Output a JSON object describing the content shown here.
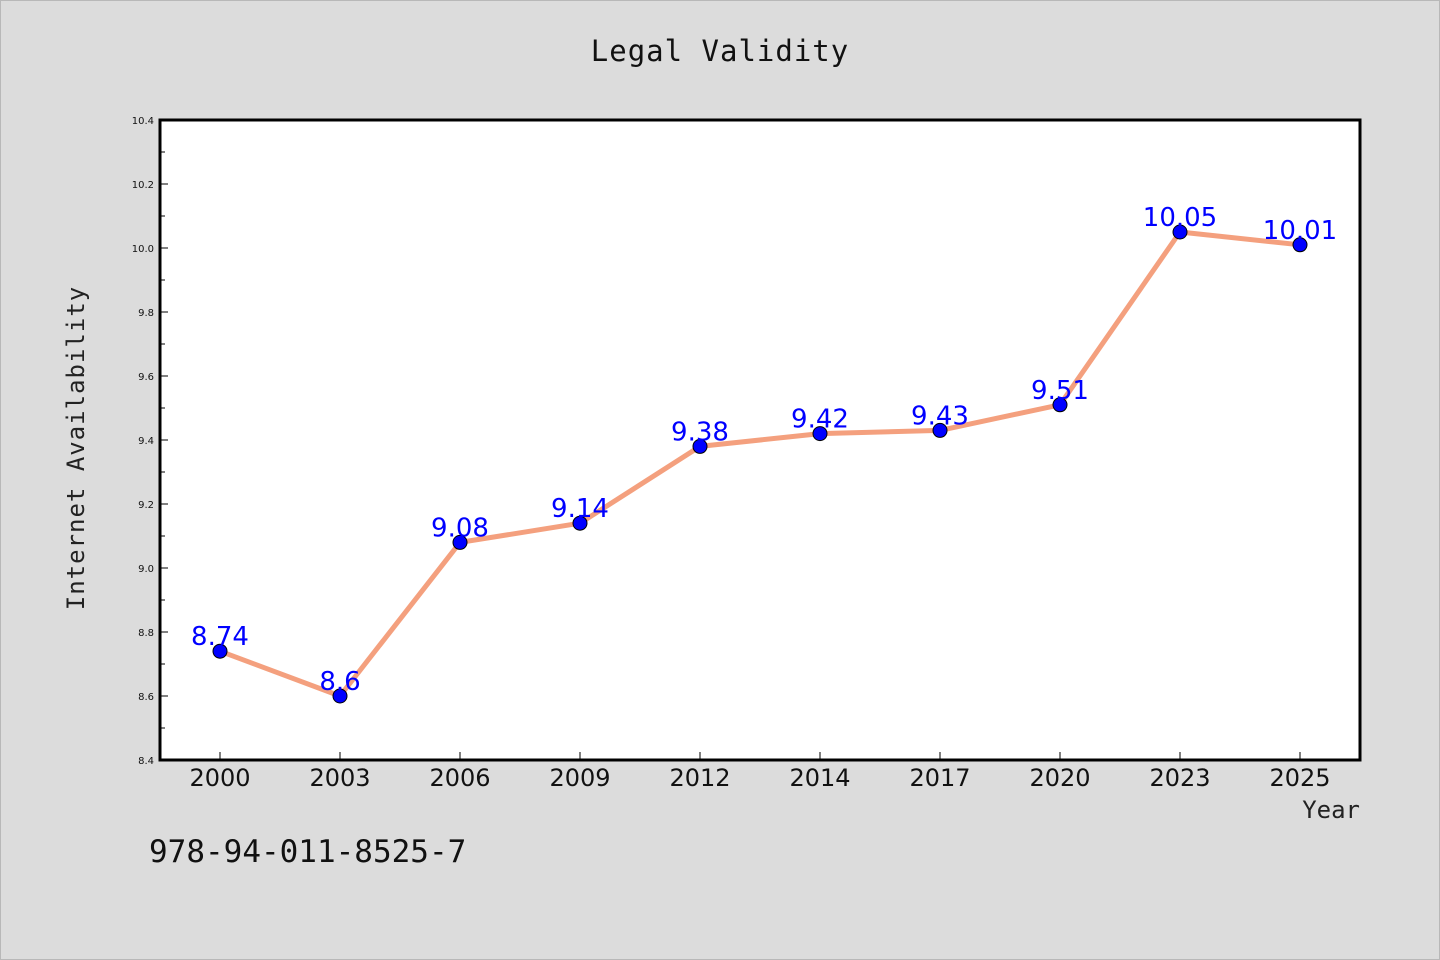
{
  "chart_data": {
    "type": "line",
    "title": "Legal Validity",
    "xlabel": "Year",
    "ylabel": "Internet Availability",
    "categories": [
      "2000",
      "2003",
      "2006",
      "2009",
      "2012",
      "2014",
      "2017",
      "2020",
      "2023",
      "2025"
    ],
    "values": [
      8.74,
      8.6,
      9.08,
      9.14,
      9.38,
      9.42,
      9.43,
      9.51,
      10.05,
      10.01
    ],
    "data_labels": [
      "8.74",
      "8.6",
      "9.08",
      "9.14",
      "9.38",
      "9.42",
      "9.43",
      "9.51",
      "10.05",
      "10.01"
    ],
    "ylim": [
      8.4,
      10.4
    ],
    "yticks": [
      8.4,
      8.6,
      8.8,
      9.0,
      9.2,
      9.4,
      9.6,
      9.8,
      10.0,
      10.2,
      10.4
    ],
    "ytick_labels": [
      "8.4",
      "8.6",
      "8.8",
      "9.0",
      "9.2",
      "9.4",
      "9.6",
      "9.8",
      "10.0",
      "10.2",
      "10.4"
    ],
    "grid": false,
    "line_color": "#f4a07e",
    "marker_color": "#0000ff",
    "label_color": "#0000ff"
  },
  "footer_text": "978-94-011-8525-7"
}
